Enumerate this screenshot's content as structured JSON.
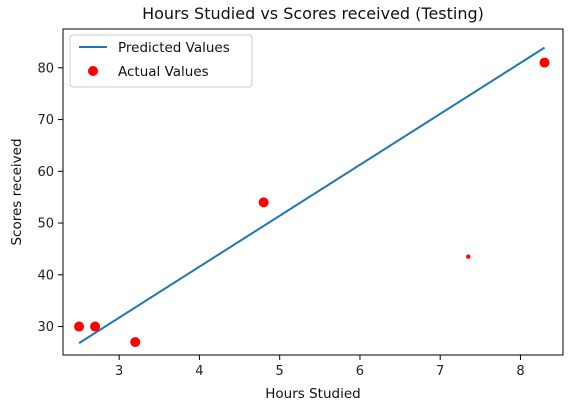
{
  "chart_data": {
    "type": "scatter",
    "title": "Hours Studied vs Scores received (Testing)",
    "xlabel": "Hours Studied",
    "ylabel": "Scores received",
    "xlim": [
      2.3,
      8.53
    ],
    "ylim": [
      24.5,
      87.5
    ],
    "xticks": [
      3,
      4,
      5,
      6,
      7,
      8
    ],
    "yticks": [
      30,
      40,
      50,
      60,
      70,
      80
    ],
    "grid": false,
    "legend_position": "top-left",
    "series": [
      {
        "name": "Predicted Values",
        "kind": "line",
        "color": "#1f77b4",
        "x": [
          2.5,
          8.3
        ],
        "y": [
          26.8,
          83.9
        ]
      },
      {
        "name": "Actual Values",
        "kind": "scatter",
        "color": "#ff0000",
        "x": [
          2.5,
          2.7,
          3.2,
          4.8,
          8.3
        ],
        "y": [
          30,
          30,
          27,
          54,
          81
        ]
      }
    ],
    "annotations": [
      {
        "kind": "point",
        "x": 7.35,
        "y": 43.5,
        "color": "#ff0000"
      }
    ]
  }
}
